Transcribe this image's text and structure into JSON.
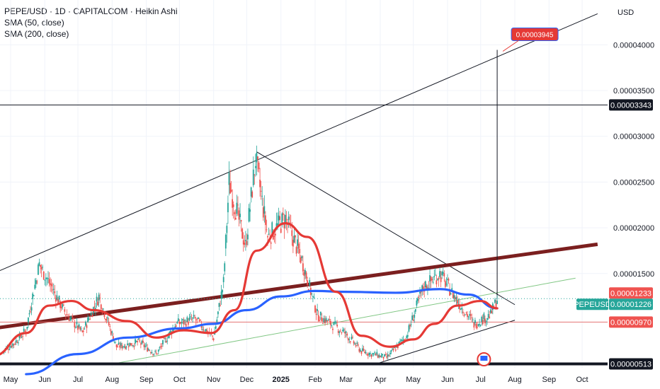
{
  "header": {
    "title": "PEPE/USD · 1D · CAPITALCOM · Heikin Ashi",
    "indicator_1": "SMA (200, close)",
    "indicator_2": "SMA (50, close)"
  },
  "currency": "USD",
  "colors": {
    "up": "#26a69a",
    "down": "#ef5350",
    "sma50": "#e53935",
    "sma200": "#2962ff",
    "resistance": "#7b1f1f",
    "support_green": "#81c784",
    "pepe_tag": "#26a69a",
    "target_tag": "#e53935"
  },
  "chart_data": {
    "type": "candlestick",
    "title": "PEPE/USD · 1D · CAPITALCOM · Heikin Ashi",
    "y_range": [
      4.7e-06,
      4.49e-05
    ],
    "y_ticks": [
      "0.00004000",
      "0.00003500",
      "0.00003000",
      "0.00002500",
      "0.00002000",
      "0.00001500"
    ],
    "x_ticks": [
      "May",
      "Jun",
      "Jul",
      "Aug",
      "Sep",
      "Oct",
      "Nov",
      "Dec",
      "2025",
      "Feb",
      "Mar",
      "Apr",
      "May",
      "Jun",
      "Jul",
      "Aug",
      "Sep",
      "Oct"
    ],
    "price_tags": [
      {
        "label": "0.00003343",
        "value": 3.343e-05,
        "style": "dark"
      },
      {
        "label": "0.00001233",
        "value": 1.233e-05,
        "style": "red"
      },
      {
        "label": "PEPEUSD",
        "value": 1.226e-05,
        "style": "green-name"
      },
      {
        "label": "0.00001226",
        "value": 1.226e-05,
        "style": "green"
      },
      {
        "label": "0.00000970",
        "value": 9.7e-06,
        "style": "red"
      },
      {
        "label": "0.00000513",
        "value": 5.13e-06,
        "style": "dark"
      }
    ],
    "target_label": "0.00003945",
    "target_value": 3.945e-05,
    "series": [
      {
        "name": "PEPE/USD",
        "close_path": [
          [
            "2024-04-24",
            6.5e-06
          ],
          [
            "2024-05-05",
            7.5e-06
          ],
          [
            "2024-05-15",
            8.8e-06
          ],
          [
            "2024-05-20",
            1.2e-05
          ],
          [
            "2024-05-27",
            1.6e-05
          ],
          [
            "2024-06-05",
            1.4e-05
          ],
          [
            "2024-06-18",
            1.1e-05
          ],
          [
            "2024-07-05",
            8.5e-06
          ],
          [
            "2024-07-20",
            1.25e-05
          ],
          [
            "2024-08-05",
            7e-06
          ],
          [
            "2024-08-25",
            7.5e-06
          ],
          [
            "2024-09-10",
            6.2e-06
          ],
          [
            "2024-09-28",
            9.5e-06
          ],
          [
            "2024-10-15",
            1e-05
          ],
          [
            "2024-11-01",
            8e-06
          ],
          [
            "2024-11-10",
            1.4e-05
          ],
          [
            "2024-11-15",
            2.5e-05
          ],
          [
            "2024-11-30",
            1.8e-05
          ],
          [
            "2024-12-09",
            2.75e-05
          ],
          [
            "2024-12-20",
            1.9e-05
          ],
          [
            "2025-01-05",
            2.1e-05
          ],
          [
            "2025-01-20",
            1.65e-05
          ],
          [
            "2025-02-03",
            1.05e-05
          ],
          [
            "2025-02-28",
            8.5e-06
          ],
          [
            "2025-03-15",
            6.5e-06
          ],
          [
            "2025-04-07",
            5.8e-06
          ],
          [
            "2025-04-25",
            8.2e-06
          ],
          [
            "2025-05-10",
            1.35e-05
          ],
          [
            "2025-05-25",
            1.5e-05
          ],
          [
            "2025-06-10",
            1.2e-05
          ],
          [
            "2025-06-25",
            9.5e-06
          ],
          [
            "2025-07-10",
            1.05e-05
          ],
          [
            "2025-07-16",
            1.22e-05
          ]
        ]
      },
      {
        "name": "SMA (50, close)",
        "values": [
          [
            "2024-04-15",
            6e-06
          ],
          [
            "2024-05-15",
            8.5e-06
          ],
          [
            "2024-06-05",
            1.15e-05
          ],
          [
            "2024-06-25",
            1.2e-05
          ],
          [
            "2024-07-15",
            1.1e-05
          ],
          [
            "2024-08-15",
            9.8e-06
          ],
          [
            "2024-09-10",
            8e-06
          ],
          [
            "2024-10-05",
            8.8e-06
          ],
          [
            "2024-10-30",
            8.5e-06
          ],
          [
            "2024-11-20",
            1.1e-05
          ],
          [
            "2024-12-10",
            1.75e-05
          ],
          [
            "2025-01-05",
            2.05e-05
          ],
          [
            "2025-01-25",
            1.9e-05
          ],
          [
            "2025-02-20",
            1.3e-05
          ],
          [
            "2025-03-15",
            8.2e-06
          ],
          [
            "2025-04-10",
            7e-06
          ],
          [
            "2025-05-01",
            7.8e-06
          ],
          [
            "2025-05-20",
            9.5e-06
          ],
          [
            "2025-06-10",
            1.15e-05
          ],
          [
            "2025-07-01",
            1.2e-05
          ],
          [
            "2025-07-16",
            1.12e-05
          ]
        ]
      },
      {
        "name": "SMA (200, close)",
        "values": [
          [
            "2024-05-15",
            4e-06
          ],
          [
            "2024-07-01",
            6.2e-06
          ],
          [
            "2024-08-15",
            8e-06
          ],
          [
            "2024-10-01",
            9e-06
          ],
          [
            "2024-11-01",
            9.5e-06
          ],
          [
            "2024-12-01",
            1.1e-05
          ],
          [
            "2025-01-01",
            1.25e-05
          ],
          [
            "2025-02-01",
            1.31e-05
          ],
          [
            "2025-03-01",
            1.3e-05
          ],
          [
            "2025-04-15",
            1.29e-05
          ],
          [
            "2025-05-25",
            1.33e-05
          ],
          [
            "2025-06-20",
            1.27e-05
          ],
          [
            "2025-07-16",
            1.12e-05
          ]
        ]
      }
    ],
    "trendlines": [
      {
        "name": "upper-channel",
        "from": [
          "2024-04-15",
          1.5e-05
        ],
        "to": [
          "2025-10-15",
          4.34e-05
        ]
      },
      {
        "name": "descending-resistance",
        "from": [
          "2024-12-10",
          2.83e-05
        ],
        "to": [
          "2025-08-01",
          1.16e-05
        ]
      },
      {
        "name": "lower-support",
        "from": [
          "2025-03-25",
          5e-06
        ],
        "to": [
          "2025-08-01",
          9.9e-06
        ]
      },
      {
        "name": "green-support",
        "from": [
          "2024-08-05",
          5.2e-06
        ],
        "to": [
          "2025-09-25",
          1.45e-05
        ]
      },
      {
        "name": "dark-red-resistance",
        "from": [
          "2024-04-15",
          9e-06
        ],
        "to": [
          "2025-10-15",
          1.82e-05
        ]
      }
    ],
    "horizontal_lines": [
      3.343e-05,
      9.7e-06,
      5.13e-06
    ],
    "grid": true
  }
}
